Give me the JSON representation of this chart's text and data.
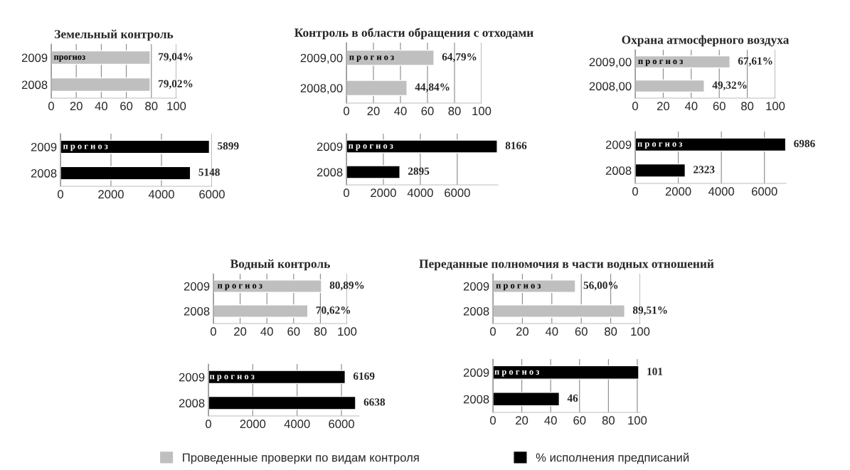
{
  "chart_data": [
    {
      "type": "bar",
      "orientation": "horizontal",
      "title": "Земельный контроль",
      "categories": [
        "2009",
        "2008"
      ],
      "series": [
        {
          "name": "Проведенные проверки по видам контроля",
          "color": "#bfbfbf",
          "values": [
            79.04,
            79.02
          ],
          "value_labels": [
            "79,04%",
            "79,02%"
          ]
        }
      ],
      "xlim": [
        0,
        100
      ],
      "xticks": [
        0,
        20,
        40,
        60,
        80,
        100
      ],
      "grid": "x",
      "legend": "bottom",
      "annotations": [
        {
          "text": "прогноз",
          "x": 2,
          "y": "2009"
        }
      ]
    },
    {
      "type": "bar",
      "orientation": "horizontal",
      "categories": [
        "2009",
        "2008"
      ],
      "series": [
        {
          "name": "% исполнения предписаний",
          "color": "#000000",
          "values": [
            5899,
            5148
          ],
          "value_labels": [
            "5899",
            "5148"
          ]
        }
      ],
      "xlim": [
        0,
        6000
      ],
      "xticks": [
        0,
        2000,
        4000,
        6000
      ],
      "grid": "x",
      "legend": "bottom",
      "annotations": [
        {
          "text": "п р о г н о з",
          "x": 100,
          "y": "2009"
        }
      ]
    },
    {
      "type": "bar",
      "orientation": "horizontal",
      "title": "Контроль в области обращения с отходами",
      "categories": [
        "2009,00",
        "2008,00"
      ],
      "series": [
        {
          "color": "#bfbfbf",
          "values": [
            64.79,
            44.84
          ],
          "value_labels": [
            "64,79%",
            "44,84%"
          ]
        }
      ],
      "xlim": [
        0,
        100
      ],
      "xticks": [
        0,
        20,
        40,
        60,
        80,
        100
      ],
      "grid": "x",
      "annotations": [
        {
          "text": "п р о г н о з",
          "x": 2,
          "y": "2009,00"
        }
      ]
    },
    {
      "type": "bar",
      "orientation": "horizontal",
      "categories": [
        "2009",
        "2008"
      ],
      "series": [
        {
          "color": "#000000",
          "values": [
            8166,
            2895
          ],
          "value_labels": [
            "8166",
            "2895"
          ]
        }
      ],
      "xlim": [
        0,
        8200
      ],
      "xticks": [
        0,
        2000,
        4000,
        6000
      ],
      "grid": "x",
      "annotations": [
        {
          "text": "п р о г н о з",
          "x": 100,
          "y": "2009"
        }
      ]
    },
    {
      "type": "bar",
      "orientation": "horizontal",
      "title": "Охрана атмосферного воздуха",
      "categories": [
        "2009,00",
        "2008,00"
      ],
      "series": [
        {
          "color": "#bfbfbf",
          "values": [
            67.61,
            49.32
          ],
          "value_labels": [
            "67,61%",
            "49,32%"
          ]
        }
      ],
      "xlim": [
        0,
        100
      ],
      "xticks": [
        0,
        20,
        40,
        60,
        80,
        100
      ],
      "grid": "x",
      "annotations": [
        {
          "text": "п р о г н о з",
          "x": 2,
          "y": "2009,00"
        }
      ]
    },
    {
      "type": "bar",
      "orientation": "horizontal",
      "categories": [
        "2009",
        "2008"
      ],
      "series": [
        {
          "color": "#000000",
          "values": [
            6986,
            2323
          ],
          "value_labels": [
            "6986",
            "2323"
          ]
        }
      ],
      "xlim": [
        0,
        7000
      ],
      "xticks": [
        0,
        2000,
        4000,
        6000
      ],
      "grid": "x",
      "annotations": [
        {
          "text": "п р о г н о з",
          "x": 100,
          "y": "2009"
        }
      ]
    },
    {
      "type": "bar",
      "orientation": "horizontal",
      "title": "Водный контроль",
      "categories": [
        "2009",
        "2008"
      ],
      "series": [
        {
          "color": "#bfbfbf",
          "values": [
            80.89,
            70.62
          ],
          "value_labels": [
            "80,89%",
            "70,62%"
          ]
        }
      ],
      "xlim": [
        0,
        100
      ],
      "xticks": [
        0,
        20,
        40,
        60,
        80,
        100
      ],
      "grid": "x",
      "annotations": [
        "п р о г н о з"
      ]
    },
    {
      "type": "bar",
      "orientation": "horizontal",
      "categories": [
        "2009",
        "2008"
      ],
      "series": [
        {
          "color": "#000000",
          "values": [
            6169,
            6638
          ],
          "value_labels": [
            "6169",
            "6638"
          ]
        }
      ],
      "xlim": [
        0,
        6800
      ],
      "xticks": [
        0,
        2000,
        4000,
        6000
      ],
      "grid": "x",
      "annotations": [
        {
          "text": "п р о г н о з",
          "x": 50,
          "y": "2009"
        }
      ]
    },
    {
      "type": "bar",
      "orientation": "horizontal",
      "title": "Переданные полномочия в части водных отношений",
      "categories": [
        "2009",
        "2008"
      ],
      "series": [
        {
          "color": "#bfbfbf",
          "values": [
            56.0,
            89.51
          ],
          "value_labels": [
            "56,00%",
            "89,51%"
          ]
        }
      ],
      "xlim": [
        0,
        100
      ],
      "xticks": [
        0,
        20,
        40,
        60,
        80,
        100
      ],
      "grid": "x",
      "annotations": [
        {
          "text": "п р о г н о з",
          "x": 2,
          "y": "2009"
        }
      ]
    },
    {
      "type": "bar",
      "orientation": "horizontal",
      "categories": [
        "2009",
        "2008"
      ],
      "series": [
        {
          "color": "#000000",
          "values": [
            101,
            46
          ],
          "value_labels": [
            "101",
            "46"
          ]
        }
      ],
      "xlim": [
        0,
        102
      ],
      "xticks": [
        0,
        20,
        40,
        60,
        80,
        100
      ],
      "grid": "x",
      "annotations": [
        {
          "text": "п р о г н о з",
          "x": 1,
          "y": "2009"
        }
      ]
    }
  ]
}
